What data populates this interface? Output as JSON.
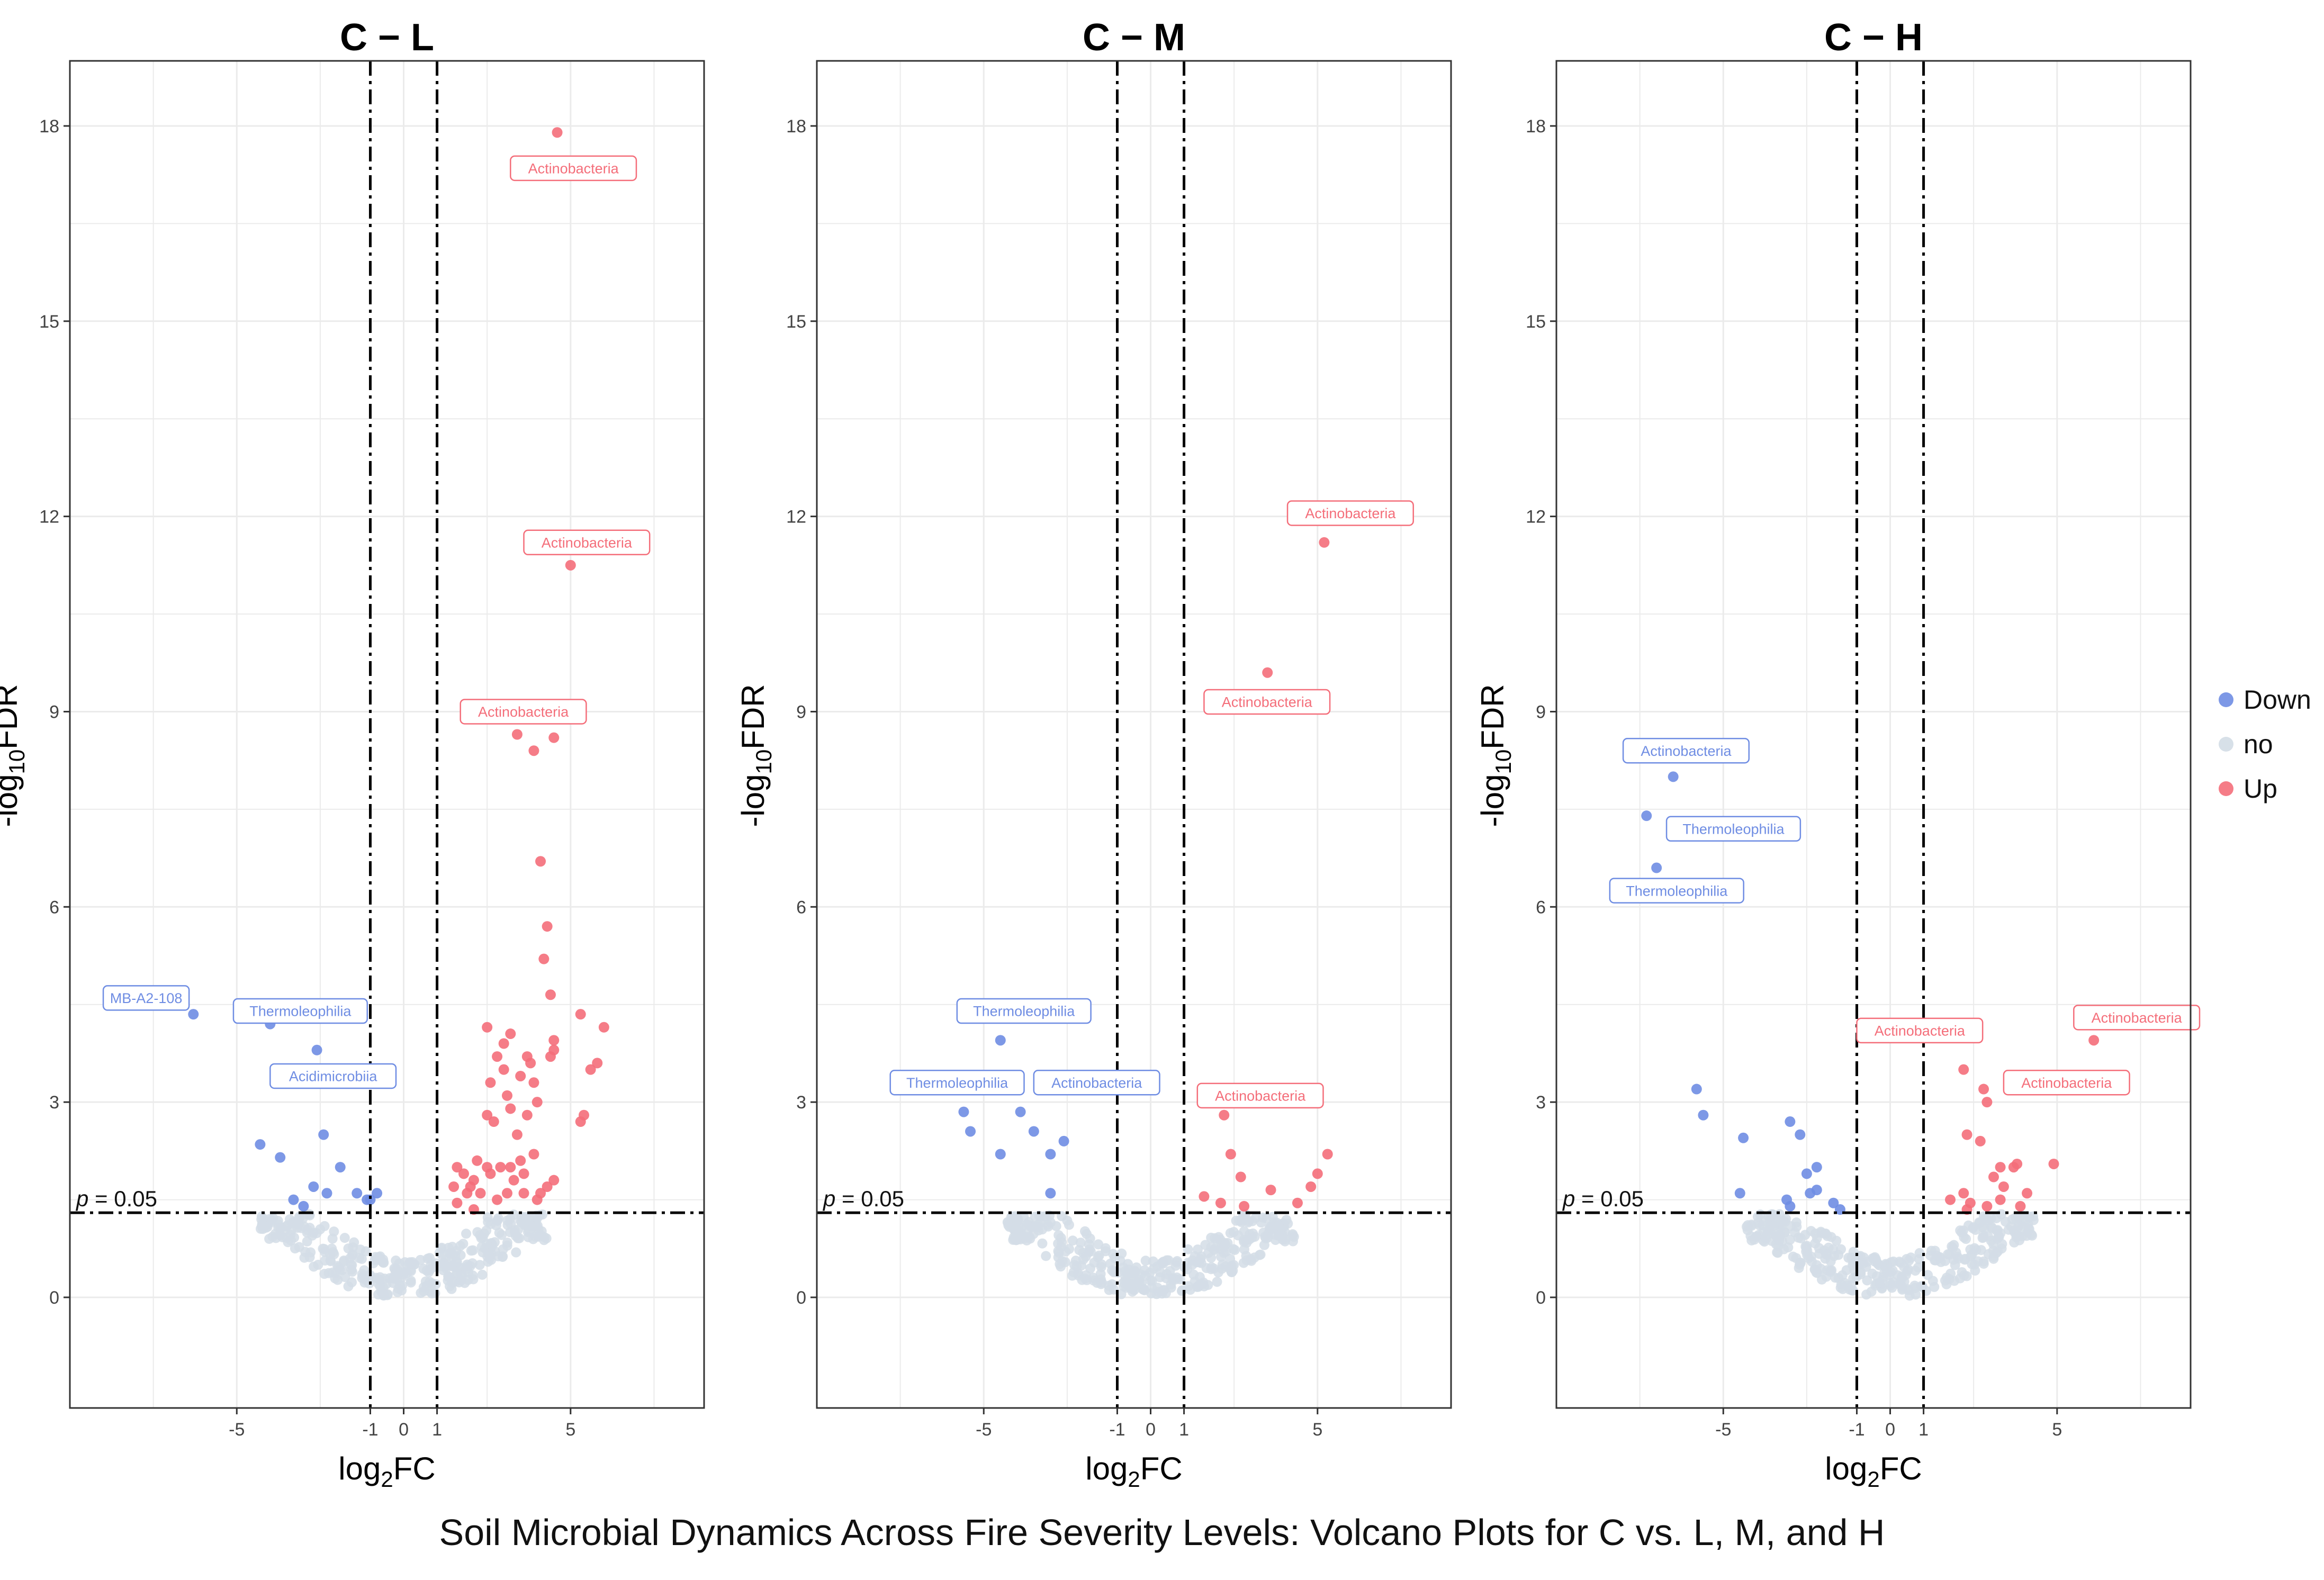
{
  "caption": "Soil Microbial Dynamics Across Fire Severity Levels: Volcano Plots for C vs. L, M, and H",
  "colors": {
    "Down": "#6f8de3",
    "no": "#d3dde6",
    "Up": "#f46e7a",
    "panel_border": "#333333",
    "grid": "#ebebeb"
  },
  "legend": {
    "items": [
      {
        "key": "Down",
        "label": "Down"
      },
      {
        "key": "no",
        "label": "no"
      },
      {
        "key": "Up",
        "label": "Up"
      }
    ]
  },
  "chart_data": [
    {
      "type": "scatter",
      "title": "C − L",
      "xlabel": "log2FC",
      "ylabel": "-log10FDR",
      "xlim": [
        -10,
        9
      ],
      "ylim": [
        -1.7,
        19
      ],
      "xticks": [
        -5,
        -1,
        0,
        1,
        5
      ],
      "xtick_labels": [
        "-5",
        "-1",
        "0",
        "1",
        "5"
      ],
      "yticks": [
        0,
        3,
        6,
        9,
        12,
        15,
        18
      ],
      "fc_thresholds": [
        -1,
        1
      ],
      "fdr_threshold": 1.3,
      "p_label": "p = 0.05",
      "points": {
        "Down": [
          [
            -6.3,
            4.35
          ],
          [
            -4.3,
            2.35
          ],
          [
            -4.0,
            4.2
          ],
          [
            -3.7,
            2.15
          ],
          [
            -3.3,
            1.5
          ],
          [
            -3.0,
            1.4
          ],
          [
            -2.7,
            1.7
          ],
          [
            -2.4,
            2.5
          ],
          [
            -2.6,
            3.8
          ],
          [
            -2.3,
            1.6
          ],
          [
            -1.9,
            2.0
          ],
          [
            -1.4,
            1.6
          ],
          [
            -1.1,
            1.5
          ],
          [
            -1.0,
            1.5
          ],
          [
            -0.8,
            1.6
          ]
        ],
        "Up": [
          [
            4.6,
            17.9
          ],
          [
            5.0,
            11.25
          ],
          [
            3.4,
            8.65
          ],
          [
            3.9,
            8.4
          ],
          [
            4.5,
            8.6
          ],
          [
            4.1,
            6.7
          ],
          [
            4.3,
            5.7
          ],
          [
            4.2,
            5.2
          ],
          [
            4.4,
            4.65
          ],
          [
            4.5,
            3.95
          ],
          [
            4.5,
            3.8
          ],
          [
            4.4,
            3.7
          ],
          [
            5.3,
            4.35
          ],
          [
            6.0,
            4.15
          ],
          [
            5.6,
            3.5
          ],
          [
            5.8,
            3.6
          ],
          [
            5.4,
            2.8
          ],
          [
            5.3,
            2.7
          ],
          [
            2.5,
            4.15
          ],
          [
            3.0,
            3.9
          ],
          [
            3.2,
            4.05
          ],
          [
            2.8,
            3.7
          ],
          [
            3.0,
            3.5
          ],
          [
            2.6,
            3.3
          ],
          [
            3.5,
            3.4
          ],
          [
            3.7,
            3.7
          ],
          [
            3.8,
            3.6
          ],
          [
            3.9,
            3.3
          ],
          [
            4.0,
            3.0
          ],
          [
            3.1,
            3.1
          ],
          [
            3.2,
            2.9
          ],
          [
            3.7,
            2.8
          ],
          [
            3.4,
            2.5
          ],
          [
            2.5,
            2.8
          ],
          [
            2.7,
            2.7
          ],
          [
            2.2,
            2.1
          ],
          [
            2.5,
            2.0
          ],
          [
            2.1,
            1.8
          ],
          [
            2.6,
            1.9
          ],
          [
            2.8,
            1.5
          ],
          [
            3.1,
            1.6
          ],
          [
            3.3,
            1.8
          ],
          [
            3.5,
            2.1
          ],
          [
            3.6,
            1.9
          ],
          [
            3.9,
            2.2
          ],
          [
            4.1,
            1.6
          ],
          [
            4.3,
            1.7
          ],
          [
            4.5,
            1.8
          ],
          [
            1.6,
            2.0
          ],
          [
            1.5,
            1.7
          ],
          [
            1.8,
            1.9
          ],
          [
            2.0,
            1.7
          ],
          [
            1.9,
            1.6
          ],
          [
            2.3,
            1.6
          ],
          [
            2.9,
            2.0
          ],
          [
            3.2,
            2.0
          ],
          [
            3.6,
            1.6
          ],
          [
            4.0,
            1.5
          ],
          [
            2.1,
            1.35
          ],
          [
            1.6,
            1.45
          ]
        ]
      },
      "labels": [
        {
          "text": "Actinobacteria",
          "group": "Up",
          "x": 3.2,
          "y": 17.35
        },
        {
          "text": "Actinobacteria",
          "group": "Up",
          "x": 3.6,
          "y": 11.6
        },
        {
          "text": "Actinobacteria",
          "group": "Up",
          "x": 1.7,
          "y": 9.0
        },
        {
          "text": "MB-A2-108",
          "group": "Down",
          "x": -9.0,
          "y": 4.6
        },
        {
          "text": "Thermoleophilia",
          "group": "Down",
          "x": -5.1,
          "y": 4.4
        },
        {
          "text": "Acidimicrobiia",
          "group": "Down",
          "x": -4.0,
          "y": 3.4
        }
      ]
    },
    {
      "type": "scatter",
      "title": "C − M",
      "xlabel": "log2FC",
      "ylabel": "-log10FDR",
      "xlim": [
        -10,
        9
      ],
      "ylim": [
        -1.7,
        19
      ],
      "xticks": [
        -5,
        -1,
        0,
        1,
        5
      ],
      "xtick_labels": [
        "-5",
        "-1",
        "0",
        "1",
        "5"
      ],
      "yticks": [
        0,
        3,
        6,
        9,
        12,
        15,
        18
      ],
      "fc_thresholds": [
        -1,
        1
      ],
      "fdr_threshold": 1.3,
      "p_label": "p = 0.05",
      "points": {
        "Down": [
          [
            -4.5,
            3.95
          ],
          [
            -5.6,
            2.85
          ],
          [
            -5.4,
            2.55
          ],
          [
            -4.5,
            2.2
          ],
          [
            -3.9,
            2.85
          ],
          [
            -3.5,
            2.55
          ],
          [
            -3.0,
            2.2
          ],
          [
            -2.6,
            2.4
          ],
          [
            -3.0,
            1.6
          ]
        ],
        "Up": [
          [
            5.2,
            11.6
          ],
          [
            3.5,
            9.6
          ],
          [
            2.2,
            2.8
          ],
          [
            2.4,
            2.2
          ],
          [
            2.7,
            1.85
          ],
          [
            3.6,
            1.65
          ],
          [
            2.8,
            1.4
          ],
          [
            4.4,
            1.45
          ],
          [
            4.8,
            1.7
          ],
          [
            5.0,
            1.9
          ],
          [
            5.3,
            2.2
          ],
          [
            1.6,
            1.55
          ],
          [
            2.1,
            1.45
          ]
        ]
      },
      "labels": [
        {
          "text": "Actinobacteria",
          "group": "Up",
          "x": 4.1,
          "y": 12.05
        },
        {
          "text": "Actinobacteria",
          "group": "Up",
          "x": 1.6,
          "y": 9.15
        },
        {
          "text": "Actinobacteria",
          "group": "Up",
          "x": 1.4,
          "y": 3.1
        },
        {
          "text": "Thermoleophilia",
          "group": "Down",
          "x": -5.8,
          "y": 4.4
        },
        {
          "text": "Thermoleophilia",
          "group": "Down",
          "x": -7.8,
          "y": 3.3
        },
        {
          "text": "Actinobacteria",
          "group": "Down",
          "x": -3.5,
          "y": 3.3
        }
      ]
    },
    {
      "type": "scatter",
      "title": "C − H",
      "xlabel": "log2FC",
      "ylabel": "-log10FDR",
      "xlim": [
        -10,
        9
      ],
      "ylim": [
        -1.7,
        19
      ],
      "xticks": [
        -5,
        -1,
        0,
        1,
        5
      ],
      "xtick_labels": [
        "-5",
        "-1",
        "0",
        "1",
        "5"
      ],
      "yticks": [
        0,
        3,
        6,
        9,
        12,
        15,
        18
      ],
      "fc_thresholds": [
        -1,
        1
      ],
      "fdr_threshold": 1.3,
      "p_label": "p = 0.05",
      "points": {
        "Down": [
          [
            -6.5,
            8.0
          ],
          [
            -7.3,
            7.4
          ],
          [
            -7.0,
            6.6
          ],
          [
            -5.8,
            3.2
          ],
          [
            -5.6,
            2.8
          ],
          [
            -4.4,
            2.45
          ],
          [
            -4.5,
            1.6
          ],
          [
            -3.0,
            2.7
          ],
          [
            -2.7,
            2.5
          ],
          [
            -2.5,
            1.9
          ],
          [
            -2.2,
            2.0
          ],
          [
            -2.4,
            1.6
          ],
          [
            -2.2,
            1.65
          ],
          [
            -3.1,
            1.5
          ],
          [
            -1.7,
            1.45
          ],
          [
            -1.5,
            1.35
          ],
          [
            -3.0,
            1.4
          ]
        ],
        "Up": [
          [
            6.1,
            3.95
          ],
          [
            2.2,
            3.5
          ],
          [
            2.8,
            3.2
          ],
          [
            2.9,
            3.0
          ],
          [
            1.8,
            1.5
          ],
          [
            2.3,
            2.5
          ],
          [
            2.7,
            2.4
          ],
          [
            2.2,
            1.6
          ],
          [
            2.4,
            1.45
          ],
          [
            2.9,
            1.4
          ],
          [
            3.1,
            1.85
          ],
          [
            3.3,
            2.0
          ],
          [
            3.4,
            1.7
          ],
          [
            3.7,
            2.0
          ],
          [
            3.8,
            2.05
          ],
          [
            4.1,
            1.6
          ],
          [
            3.9,
            1.4
          ],
          [
            4.9,
            2.05
          ],
          [
            2.3,
            1.35
          ],
          [
            3.3,
            1.5
          ]
        ]
      },
      "labels": [
        {
          "text": "Actinobacteria",
          "group": "Down",
          "x": -8.0,
          "y": 8.4
        },
        {
          "text": "Thermoleophilia",
          "group": "Down",
          "x": -6.7,
          "y": 7.2
        },
        {
          "text": "Thermoleophilia",
          "group": "Down",
          "x": -8.4,
          "y": 6.25
        },
        {
          "text": "Actinobacteria",
          "group": "Up",
          "x": -1.0,
          "y": 4.1
        },
        {
          "text": "Actinobacteria",
          "group": "Up",
          "x": 5.5,
          "y": 4.3
        },
        {
          "text": "Actinobacteria",
          "group": "Up",
          "x": 3.4,
          "y": 3.3
        }
      ]
    }
  ]
}
